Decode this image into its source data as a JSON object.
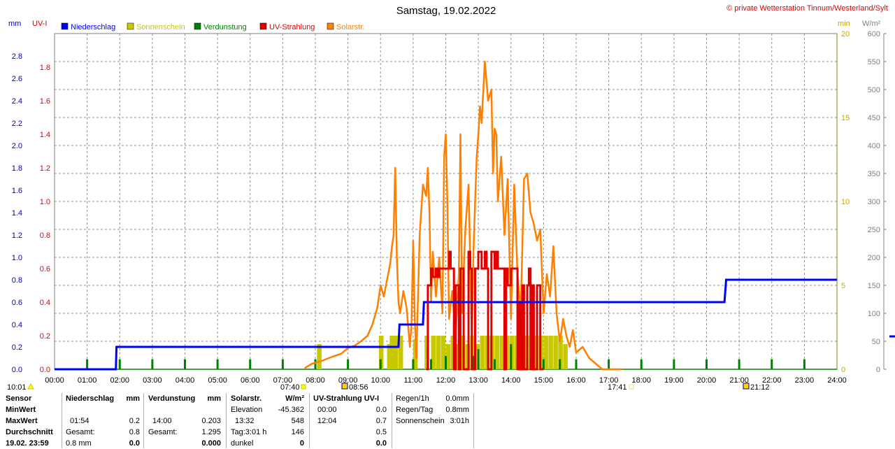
{
  "title": "Samstag, 19.02.2022",
  "copyright": "© private Wetterstation Tinnum/Westerland/Sylt",
  "units": {
    "mm": "mm",
    "uvi": "UV-I",
    "min": "min",
    "wm2": "W/m²"
  },
  "legend": [
    {
      "label": "Niederschlag",
      "color": "#0000ff"
    },
    {
      "label": "Sonnenschein",
      "color": "#c8c800"
    },
    {
      "label": "Verdunstung",
      "color": "#008000"
    },
    {
      "label": "UV-Strahlung",
      "color": "#e00000"
    },
    {
      "label": "Solarstr.",
      "color": "#ff8000"
    }
  ],
  "sun_markers": {
    "sunrise": "07:40",
    "sunset": "17:41",
    "daylength": "10:01",
    "moonrise": "08:56",
    "moonset": "21:12"
  },
  "chart_data": {
    "type": "line",
    "x_label_times": [
      "00:00",
      "01:00",
      "02:00",
      "03:00",
      "04:00",
      "05:00",
      "06:00",
      "07:00",
      "08:00",
      "09:00",
      "10:00",
      "11:00",
      "12:00",
      "13:00",
      "14:00",
      "15:00",
      "16:00",
      "17:00",
      "18:00",
      "19:00",
      "20:00",
      "21:00",
      "22:00",
      "23:00",
      "24:00"
    ],
    "xlim_hours": [
      0,
      24
    ],
    "grid": true,
    "axes": {
      "mm": {
        "range": [
          0,
          3.0
        ],
        "ticks": [
          "0.0",
          "0.2",
          "0.4",
          "0.6",
          "0.8",
          "1.0",
          "1.2",
          "1.4",
          "1.6",
          "1.8",
          "2.0",
          "2.2",
          "2.4",
          "2.6",
          "2.8"
        ]
      },
      "uvi": {
        "range": [
          0,
          2.0
        ],
        "ticks": [
          "0.0",
          "0.2",
          "0.4",
          "0.6",
          "0.8",
          "1.0",
          "1.2",
          "1.4",
          "1.6",
          "1.8"
        ]
      },
      "min": {
        "range": [
          0,
          20
        ],
        "ticks": [
          "0",
          "5",
          "10",
          "15",
          "20"
        ]
      },
      "wm2": {
        "range": [
          0,
          600
        ],
        "ticks": [
          "0",
          "50",
          "100",
          "150",
          "200",
          "250",
          "300",
          "350",
          "400",
          "450",
          "500",
          "550",
          "600"
        ]
      }
    },
    "series": [
      {
        "name": "Niederschlag",
        "axis": "mm",
        "color": "#0000ff",
        "kind": "step",
        "x": [
          0,
          1.88,
          1.9,
          10.55,
          10.58,
          11.3,
          11.33,
          20.55,
          20.6,
          24
        ],
        "y": [
          0,
          0,
          0.2,
          0.2,
          0.4,
          0.4,
          0.6,
          0.6,
          0.8,
          0.8
        ]
      },
      {
        "name": "Solarstr.",
        "axis": "wm2",
        "color": "#ff8000",
        "kind": "line",
        "x": [
          7.67,
          7.9,
          8.2,
          8.5,
          8.8,
          9.0,
          9.2,
          9.4,
          9.6,
          9.75,
          9.9,
          10.0,
          10.1,
          10.2,
          10.3,
          10.35,
          10.4,
          10.45,
          10.5,
          10.55,
          10.6,
          10.7,
          10.8,
          10.9,
          10.95,
          11.0,
          11.05,
          11.1,
          11.2,
          11.3,
          11.4,
          11.45,
          11.5,
          11.55,
          11.6,
          11.7,
          11.8,
          11.9,
          11.95,
          12.0,
          12.05,
          12.1,
          12.2,
          12.3,
          12.4,
          12.45,
          12.5,
          12.6,
          12.7,
          12.8,
          12.85,
          12.9,
          12.95,
          13.0,
          13.05,
          13.1,
          13.2,
          13.3,
          13.4,
          13.45,
          13.5,
          13.55,
          13.6,
          13.7,
          13.8,
          13.9,
          14.0,
          14.1,
          14.2,
          14.3,
          14.4,
          14.5,
          14.6,
          14.7,
          14.8,
          14.9,
          15.0,
          15.1,
          15.2,
          15.3,
          15.4,
          15.5,
          15.6,
          15.7,
          15.8,
          15.9,
          16.0,
          16.2,
          16.4,
          16.6,
          16.8,
          17.0,
          17.2,
          17.4
        ],
        "y": [
          2,
          10,
          15,
          22,
          28,
          38,
          42,
          50,
          60,
          80,
          110,
          150,
          130,
          160,
          190,
          220,
          240,
          360,
          200,
          120,
          100,
          140,
          110,
          40,
          80,
          230,
          90,
          20,
          240,
          330,
          310,
          360,
          280,
          120,
          210,
          130,
          200,
          100,
          380,
          420,
          300,
          90,
          140,
          60,
          170,
          420,
          100,
          250,
          330,
          60,
          210,
          300,
          380,
          420,
          470,
          440,
          550,
          480,
          500,
          350,
          430,
          420,
          300,
          380,
          240,
          340,
          90,
          330,
          170,
          100,
          340,
          350,
          280,
          260,
          230,
          250,
          100,
          170,
          130,
          220,
          100,
          50,
          90,
          60,
          40,
          70,
          30,
          40,
          20,
          10,
          0,
          0,
          0,
          0
        ]
      },
      {
        "name": "UV-Strahlung",
        "axis": "uvi",
        "color": "#e00000",
        "kind": "step",
        "x": [
          11.4,
          11.45,
          11.55,
          11.6,
          11.7,
          11.75,
          11.8,
          11.9,
          12.0,
          12.1,
          12.15,
          12.25,
          12.3,
          12.4,
          12.45,
          12.55,
          12.6,
          12.65,
          12.7,
          12.75,
          12.8,
          12.9,
          13.0,
          13.1,
          13.2,
          13.25,
          13.3,
          13.4,
          13.5,
          13.55,
          13.6,
          13.7,
          13.8,
          13.85,
          13.9,
          14.0,
          14.1,
          14.2,
          14.25,
          14.3,
          14.35,
          14.4,
          14.5,
          14.55,
          14.6,
          14.65,
          14.7,
          14.8,
          14.9,
          15.0
        ],
        "y": [
          0,
          0.5,
          0.6,
          0.55,
          0.6,
          0.55,
          0.6,
          0.6,
          0.6,
          0.7,
          0.6,
          0.0,
          0.5,
          0.0,
          0.6,
          0.0,
          0.0,
          0.0,
          0.7,
          0.6,
          0.0,
          0.6,
          0.7,
          0.6,
          0.7,
          0.6,
          0.0,
          0.7,
          0.6,
          0.7,
          0.6,
          0.6,
          0.0,
          0.6,
          0.5,
          0.6,
          0.6,
          0.0,
          0.4,
          0.0,
          0.5,
          0.0,
          0.5,
          0.6,
          0.0,
          0.5,
          0.0,
          0.5,
          0.0,
          0.0
        ]
      },
      {
        "name": "Sonnenschein",
        "axis": "min",
        "color": "#c8c800",
        "kind": "bar",
        "x": [
          8.05,
          9.95,
          10.2,
          10.28,
          10.4,
          10.55,
          11.0,
          11.35,
          11.55,
          11.7,
          11.85,
          12.0,
          12.15,
          12.3,
          12.45,
          12.6,
          12.75,
          12.9,
          13.05,
          13.2,
          13.35,
          13.5,
          13.65,
          13.8,
          13.95,
          14.1,
          14.25,
          14.4,
          14.55,
          14.7,
          14.85,
          15.0,
          15.15,
          15.3,
          15.45,
          15.6
        ],
        "y": [
          1.5,
          2,
          1.5,
          2,
          2,
          2,
          1.8,
          2,
          2,
          2,
          2,
          1.5,
          2,
          1.5,
          2,
          1.5,
          2,
          1.5,
          2,
          2,
          2,
          2,
          2,
          2,
          2,
          2,
          1.5,
          2,
          2,
          2,
          2,
          2,
          2,
          2,
          2,
          1.5
        ]
      },
      {
        "name": "Verdunstung",
        "axis": "min",
        "color": "#008000",
        "kind": "tick",
        "x": [
          1.0,
          2.0,
          3.0,
          4.0,
          5.0,
          6.0,
          7.0,
          8.0,
          9.0,
          10.0,
          11.0,
          11.45,
          11.55,
          12.0,
          12.45,
          12.85,
          13.0,
          13.5,
          14.0,
          14.2,
          14.5,
          15.0,
          15.5,
          16.0,
          17.0,
          18.0,
          19.0,
          20.0,
          21.0,
          22.0,
          23.0
        ],
        "y": [
          0.6,
          0.6,
          0.6,
          0.6,
          0.6,
          0.6,
          0.6,
          0.6,
          0.6,
          0.6,
          0.6,
          1.2,
          0.6,
          0.8,
          0.6,
          0.8,
          1.2,
          0.6,
          1.5,
          0.6,
          0.6,
          0.6,
          0.6,
          0.6,
          0.6,
          0.6,
          0.6,
          0.6,
          0.6,
          0.6,
          0.6
        ]
      }
    ]
  },
  "stats": {
    "col_sensor": {
      "header": "Sensor",
      "rows": [
        "MinWert",
        "MaxWert",
        "Durchschnitt",
        "19.02. 23:59"
      ]
    },
    "col_niederschlag": {
      "header": "Niederschlag",
      "unit": "mm",
      "rows": [
        [
          "",
          ""
        ],
        [
          "01:54",
          "0.2"
        ],
        [
          "Gesamt:",
          "0.8"
        ],
        [
          "0.8 mm",
          "0.0"
        ]
      ]
    },
    "col_verdunstung": {
      "header": "Verdunstung",
      "unit": "mm",
      "rows": [
        [
          "",
          ""
        ],
        [
          "14:00",
          "0.203"
        ],
        [
          "Gesamt:",
          "1.295"
        ],
        [
          "",
          "0.000"
        ]
      ]
    },
    "col_solar": {
      "header": "Solarstr.",
      "unit": "W/m²",
      "rows": [
        [
          "Elevation",
          "-45.362"
        ],
        [
          "13:32",
          "548"
        ],
        [
          "Tag:3:01 h",
          "146"
        ],
        [
          "dunkel",
          "0"
        ]
      ]
    },
    "col_uv": {
      "header": "UV-Strahlung UV-I",
      "rows": [
        [
          "00:00",
          "0.0"
        ],
        [
          "12:04",
          "0.7"
        ],
        [
          "",
          "0.5"
        ],
        [
          "",
          "0.0"
        ]
      ]
    },
    "col_regen": {
      "rows": [
        [
          "Regen/1h",
          "0.0mm"
        ],
        [
          "Regen/Tag",
          "0.8mm"
        ],
        [
          "Sonnenschein",
          "3:01h"
        ]
      ]
    }
  }
}
